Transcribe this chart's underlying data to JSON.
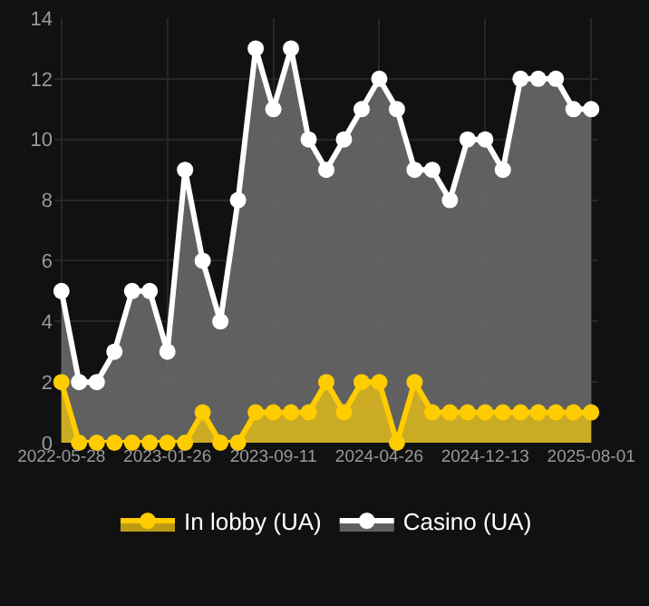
{
  "chart_data": {
    "type": "area",
    "categories": [
      "2022-05-28",
      null,
      null,
      null,
      null,
      null,
      "2023-01-26",
      null,
      null,
      null,
      null,
      null,
      "2023-09-11",
      null,
      null,
      null,
      null,
      null,
      "2024-04-26",
      null,
      null,
      null,
      null,
      null,
      "2024-12-13",
      null,
      null,
      null,
      null,
      null,
      "2025-08-01"
    ],
    "series": [
      {
        "name": "In lobby (UA)",
        "color": "#ffcc00",
        "values": [
          2,
          0,
          0,
          0,
          0,
          0,
          0,
          0,
          1,
          0,
          0,
          1,
          1,
          1,
          1,
          2,
          1,
          2,
          2,
          0,
          2,
          1,
          1,
          1,
          1,
          1,
          1,
          1,
          1,
          1,
          1
        ]
      },
      {
        "name": "Casino (UA)",
        "color": "#ffffff",
        "values": [
          5,
          2,
          2,
          3,
          5,
          5,
          3,
          9,
          6,
          4,
          8,
          13,
          11,
          13,
          10,
          9,
          10,
          11,
          12,
          11,
          9,
          9,
          8,
          10,
          10,
          9,
          12,
          12,
          12,
          11,
          11
        ]
      }
    ],
    "ylim": [
      0,
      14
    ],
    "yticks": [
      0,
      2,
      4,
      6,
      8,
      10,
      12,
      14
    ],
    "grid": true,
    "legend": "bottom",
    "marker": "circle",
    "line_style": "solid"
  }
}
